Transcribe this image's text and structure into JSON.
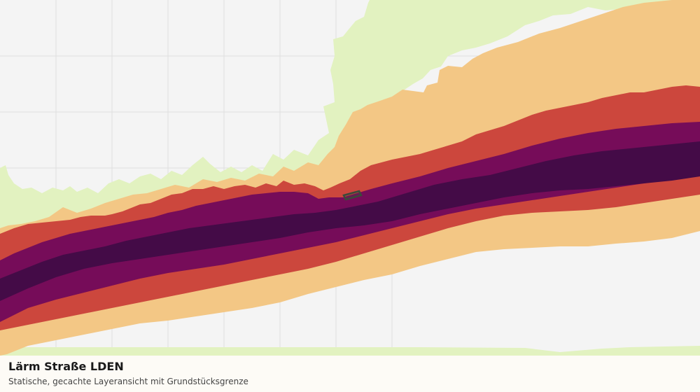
{
  "caption": {
    "title": "Lärm Straße LDEN",
    "subtitle": "Statische, gecachte Layeransicht mit Grundstücksgrenze"
  },
  "layer": {
    "name": "Lärm Straße LDEN",
    "noise_band_colors": {
      "band_1": "#e2f2c0",
      "band_2": "#f3c785",
      "band_3": "#cc473d",
      "band_4": "#760c59",
      "band_5": "#440b47"
    },
    "parcel_boundary_color": "#3b4a3a"
  },
  "basemap": {
    "background_color": "#f4f4f4",
    "grid_color": "#dedede"
  }
}
